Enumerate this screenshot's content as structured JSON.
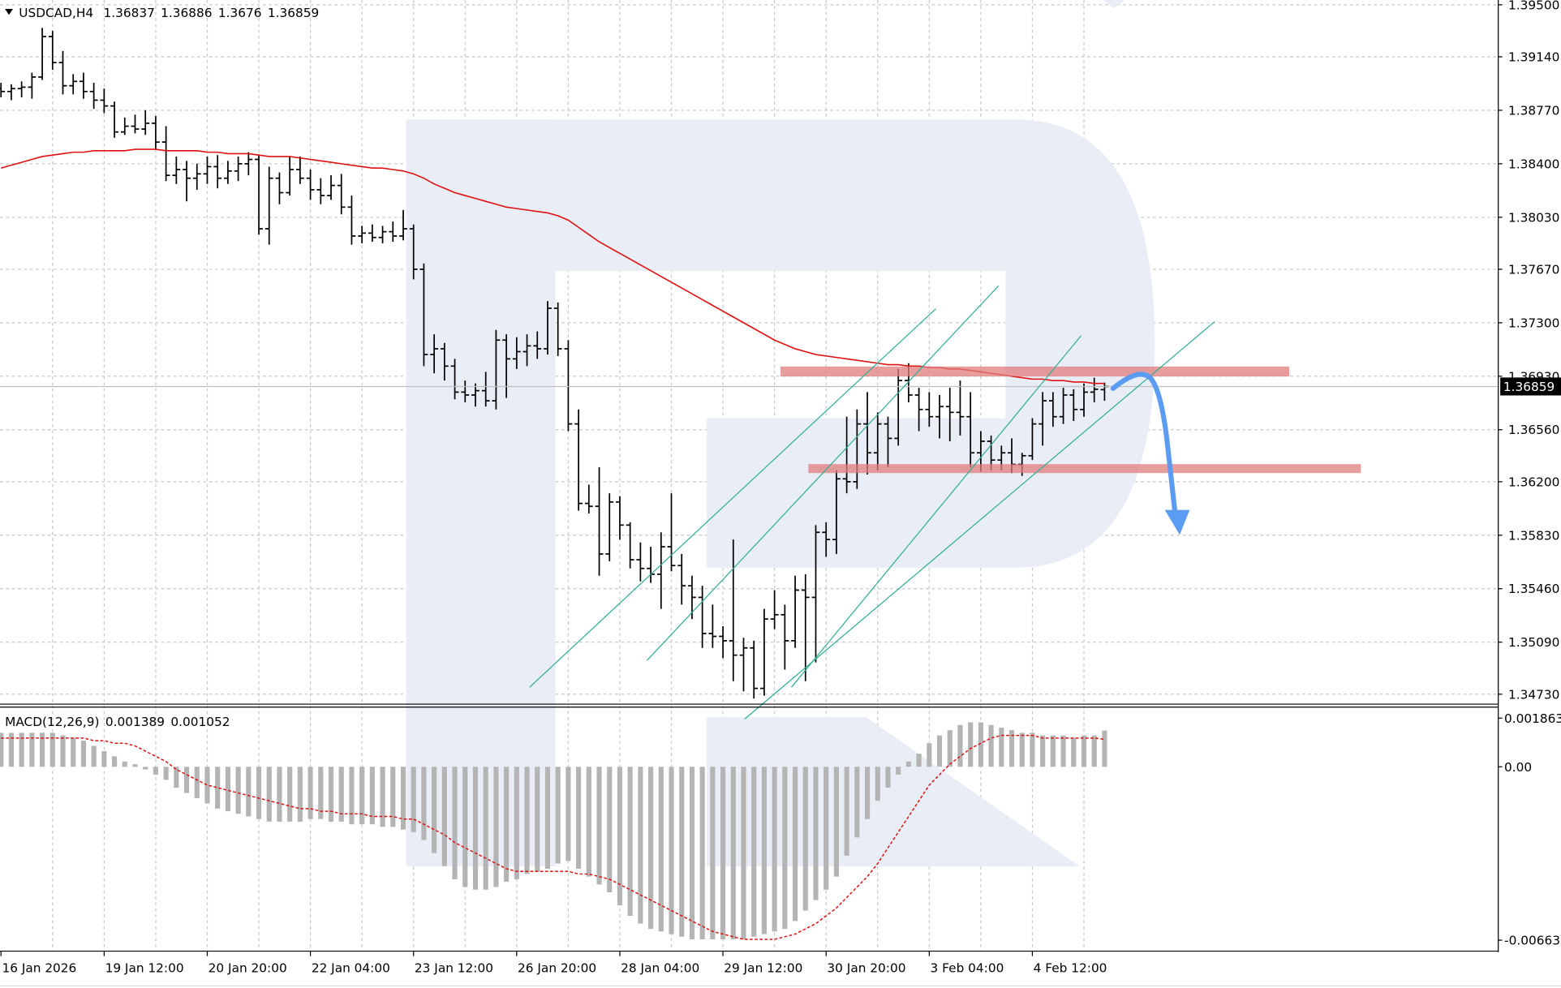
{
  "chart_data": {
    "type": "ohlc",
    "symbol": "USDCAD,H4",
    "categories": [
      "16 Jan 2026",
      null,
      null,
      null,
      null,
      null,
      null,
      null,
      null,
      null,
      "19 Jan 12:00",
      null,
      null,
      null,
      null,
      null,
      null,
      null,
      null,
      null,
      "20 Jan 20:00",
      null,
      null,
      null,
      null,
      null,
      null,
      null,
      null,
      null,
      "22 Jan 04:00",
      null,
      null,
      null,
      null,
      null,
      null,
      null,
      null,
      null,
      "23 Jan 12:00",
      null,
      null,
      null,
      null,
      null,
      null,
      null,
      null,
      null,
      "26 Jan 20:00",
      null,
      null,
      null,
      null,
      null,
      null,
      null,
      null,
      null,
      "28 Jan 04:00",
      null,
      null,
      null,
      null,
      null,
      null,
      null,
      null,
      null,
      "29 Jan 12:00",
      null,
      null,
      null,
      null,
      null,
      null,
      null,
      null,
      null,
      "30 Jan 20:00",
      null,
      null,
      null,
      null,
      null,
      null,
      null,
      null,
      null,
      "3 Feb 04:00",
      null,
      null,
      null,
      null,
      null,
      null,
      null,
      null,
      null,
      "4 Feb 12:00",
      null,
      null,
      null,
      null,
      null,
      null,
      null
    ],
    "ohlc": [
      [
        1.3892,
        1.3896,
        1.3886,
        1.389
      ],
      [
        1.389,
        1.3895,
        1.3884,
        1.3892
      ],
      [
        1.3892,
        1.3897,
        1.3886,
        1.3893
      ],
      [
        1.3893,
        1.3903,
        1.3885,
        1.39
      ],
      [
        1.39,
        1.3934,
        1.3898,
        1.3928
      ],
      [
        1.3928,
        1.3932,
        1.3905,
        1.391
      ],
      [
        1.391,
        1.3918,
        1.3888,
        1.3894
      ],
      [
        1.3894,
        1.3902,
        1.3888,
        1.3897
      ],
      [
        1.3897,
        1.3903,
        1.3885,
        1.389
      ],
      [
        1.389,
        1.3896,
        1.3878,
        1.3884
      ],
      [
        1.3884,
        1.3892,
        1.3875,
        1.388
      ],
      [
        1.388,
        1.3883,
        1.3858,
        1.3862
      ],
      [
        1.3862,
        1.3872,
        1.386,
        1.3866
      ],
      [
        1.3866,
        1.3874,
        1.3861,
        1.3864
      ],
      [
        1.3864,
        1.3877,
        1.386,
        1.3868
      ],
      [
        1.3868,
        1.3873,
        1.385,
        1.3855
      ],
      [
        1.3855,
        1.3866,
        1.3828,
        1.3832
      ],
      [
        1.3832,
        1.3845,
        1.3826,
        1.3836
      ],
      [
        1.3836,
        1.3842,
        1.3814,
        1.383
      ],
      [
        1.383,
        1.384,
        1.3822,
        1.3833
      ],
      [
        1.3833,
        1.3845,
        1.3826,
        1.3838
      ],
      [
        1.3838,
        1.3846,
        1.3823,
        1.383
      ],
      [
        1.383,
        1.3842,
        1.3826,
        1.3835
      ],
      [
        1.3835,
        1.3845,
        1.3828,
        1.384
      ],
      [
        1.384,
        1.3848,
        1.3832,
        1.3843
      ],
      [
        1.3843,
        1.3846,
        1.3791,
        1.3795
      ],
      [
        1.3795,
        1.3838,
        1.3784,
        1.383
      ],
      [
        1.383,
        1.3834,
        1.3812,
        1.382
      ],
      [
        1.382,
        1.3845,
        1.3818,
        1.3836
      ],
      [
        1.3836,
        1.3845,
        1.3826,
        1.383
      ],
      [
        1.383,
        1.3836,
        1.3815,
        1.3822
      ],
      [
        1.3822,
        1.383,
        1.3812,
        1.3818
      ],
      [
        1.3818,
        1.3832,
        1.3815,
        1.3825
      ],
      [
        1.3825,
        1.3833,
        1.3805,
        1.381
      ],
      [
        1.381,
        1.3818,
        1.3784,
        1.379
      ],
      [
        1.379,
        1.3797,
        1.3785,
        1.3792
      ],
      [
        1.3792,
        1.3798,
        1.3786,
        1.3789
      ],
      [
        1.3789,
        1.3797,
        1.3785,
        1.3793
      ],
      [
        1.3793,
        1.38,
        1.3786,
        1.379
      ],
      [
        1.379,
        1.3808,
        1.3787,
        1.3795
      ],
      [
        1.3795,
        1.3798,
        1.376,
        1.3767
      ],
      [
        1.3767,
        1.3771,
        1.37,
        1.3708
      ],
      [
        1.3708,
        1.3722,
        1.3695,
        1.3712
      ],
      [
        1.3712,
        1.3716,
        1.369,
        1.37
      ],
      [
        1.37,
        1.3705,
        1.3677,
        1.3682
      ],
      [
        1.3682,
        1.369,
        1.3675,
        1.368
      ],
      [
        1.368,
        1.3688,
        1.3672,
        1.3683
      ],
      [
        1.3683,
        1.3696,
        1.3672,
        1.3676
      ],
      [
        1.3676,
        1.3725,
        1.367,
        1.3718
      ],
      [
        1.3718,
        1.3722,
        1.3678,
        1.3705
      ],
      [
        1.3705,
        1.372,
        1.3698,
        1.371
      ],
      [
        1.371,
        1.3722,
        1.37,
        1.3714
      ],
      [
        1.3714,
        1.3724,
        1.3705,
        1.3712
      ],
      [
        1.3712,
        1.3745,
        1.3708,
        1.374
      ],
      [
        1.374,
        1.3744,
        1.3707,
        1.3712
      ],
      [
        1.3712,
        1.3718,
        1.3655,
        1.366
      ],
      [
        1.366,
        1.367,
        1.36,
        1.3605
      ],
      [
        1.3605,
        1.3618,
        1.3598,
        1.3603
      ],
      [
        1.3603,
        1.363,
        1.3555,
        1.357
      ],
      [
        1.357,
        1.3612,
        1.3565,
        1.3606
      ],
      [
        1.3606,
        1.361,
        1.358,
        1.359
      ],
      [
        1.359,
        1.3592,
        1.356,
        1.3566
      ],
      [
        1.3566,
        1.3578,
        1.3551,
        1.356
      ],
      [
        1.356,
        1.3575,
        1.355,
        1.3556
      ],
      [
        1.3556,
        1.3585,
        1.3532,
        1.3575
      ],
      [
        1.3575,
        1.3612,
        1.3558,
        1.3562
      ],
      [
        1.3562,
        1.357,
        1.3535,
        1.3548
      ],
      [
        1.3548,
        1.3555,
        1.3525,
        1.354
      ],
      [
        1.354,
        1.3548,
        1.3505,
        1.3515
      ],
      [
        1.3515,
        1.3535,
        1.3505,
        1.3513
      ],
      [
        1.3513,
        1.352,
        1.3498,
        1.351
      ],
      [
        1.351,
        1.358,
        1.3482,
        1.35
      ],
      [
        1.35,
        1.3512,
        1.3475,
        1.3505
      ],
      [
        1.3505,
        1.351,
        1.347,
        1.3477
      ],
      [
        1.3477,
        1.3532,
        1.3472,
        1.3525
      ],
      [
        1.3525,
        1.3545,
        1.3518,
        1.3528
      ],
      [
        1.3528,
        1.3535,
        1.349,
        1.351
      ],
      [
        1.351,
        1.3555,
        1.3505,
        1.3545
      ],
      [
        1.3545,
        1.3556,
        1.3482,
        1.354
      ],
      [
        1.354,
        1.359,
        1.3495,
        1.3585
      ],
      [
        1.3585,
        1.3592,
        1.3568,
        1.358
      ],
      [
        1.358,
        1.3628,
        1.357,
        1.3622
      ],
      [
        1.3622,
        1.3665,
        1.3612,
        1.362
      ],
      [
        1.362,
        1.367,
        1.3615,
        1.366
      ],
      [
        1.366,
        1.3682,
        1.3625,
        1.364
      ],
      [
        1.364,
        1.3668,
        1.3628,
        1.366
      ],
      [
        1.366,
        1.3665,
        1.363,
        1.365
      ],
      [
        1.365,
        1.3698,
        1.3645,
        1.369
      ],
      [
        1.369,
        1.3702,
        1.3675,
        1.368
      ],
      [
        1.368,
        1.3685,
        1.3655,
        1.367
      ],
      [
        1.367,
        1.3682,
        1.3658,
        1.3665
      ],
      [
        1.3665,
        1.368,
        1.365,
        1.3672
      ],
      [
        1.3672,
        1.3685,
        1.3648,
        1.3668
      ],
      [
        1.3668,
        1.369,
        1.3652,
        1.3665
      ],
      [
        1.3665,
        1.3682,
        1.363,
        1.364
      ],
      [
        1.364,
        1.3655,
        1.3627,
        1.3648
      ],
      [
        1.3648,
        1.3652,
        1.3628,
        1.3635
      ],
      [
        1.3635,
        1.3645,
        1.3628,
        1.364
      ],
      [
        1.364,
        1.365,
        1.3626,
        1.3632
      ],
      [
        1.3632,
        1.364,
        1.3624,
        1.3638
      ],
      [
        1.3638,
        1.3664,
        1.3635,
        1.366
      ],
      [
        1.366,
        1.3682,
        1.3645,
        1.3676
      ],
      [
        1.3676,
        1.3682,
        1.3658,
        1.3665
      ],
      [
        1.3665,
        1.3685,
        1.366,
        1.368
      ],
      [
        1.368,
        1.3684,
        1.3662,
        1.367
      ],
      [
        1.367,
        1.3688,
        1.3665,
        1.3682
      ],
      [
        1.3682,
        1.3692,
        1.3675,
        1.3684
      ],
      [
        1.36837,
        1.36886,
        1.3676,
        1.36859
      ]
    ],
    "bar_color": "#000000",
    "ma": {
      "color": "#e01010",
      "values": [
        1.3837,
        1.3839,
        1.3841,
        1.3843,
        1.3845,
        1.3846,
        1.3847,
        1.3848,
        1.3848,
        1.3849,
        1.3849,
        1.3849,
        1.3849,
        1.385,
        1.385,
        1.385,
        1.3849,
        1.3849,
        1.3849,
        1.3849,
        1.3848,
        1.3848,
        1.3847,
        1.3847,
        1.3847,
        1.3846,
        1.3845,
        1.3845,
        1.3845,
        1.3844,
        1.3843,
        1.3842,
        1.3841,
        1.384,
        1.3839,
        1.3838,
        1.3837,
        1.3837,
        1.3836,
        1.3835,
        1.3833,
        1.383,
        1.3826,
        1.3823,
        1.382,
        1.3818,
        1.3816,
        1.3814,
        1.3812,
        1.381,
        1.3809,
        1.3808,
        1.3807,
        1.3806,
        1.3804,
        1.3801,
        1.3796,
        1.3791,
        1.3786,
        1.3782,
        1.3778,
        1.3774,
        1.377,
        1.3766,
        1.3762,
        1.3758,
        1.3754,
        1.375,
        1.3746,
        1.3742,
        1.3738,
        1.3734,
        1.373,
        1.3726,
        1.3722,
        1.3718,
        1.3715,
        1.3712,
        1.371,
        1.3708,
        1.3707,
        1.3706,
        1.3705,
        1.3704,
        1.3703,
        1.3702,
        1.3701,
        1.3701,
        1.37,
        1.37,
        1.3699,
        1.3699,
        1.3698,
        1.3698,
        1.3697,
        1.3696,
        1.3695,
        1.3694,
        1.3693,
        1.3692,
        1.3691,
        1.3691,
        1.369,
        1.369,
        1.3689,
        1.3689,
        1.3688,
        1.3688
      ]
    },
    "ylim": [
      1.34668,
      1.39533
    ],
    "yticks": [
      {
        "value": 1.395,
        "label": "1.39500"
      },
      {
        "value": 1.3914,
        "label": "1.39140"
      },
      {
        "value": 1.3877,
        "label": "1.38770"
      },
      {
        "value": 1.384,
        "label": "1.38400"
      },
      {
        "value": 1.3803,
        "label": "1.38030"
      },
      {
        "value": 1.3767,
        "label": "1.37670"
      },
      {
        "value": 1.373,
        "label": "1.37300"
      },
      {
        "value": 1.3693,
        "label": "1.36930"
      },
      {
        "value": 1.3656,
        "label": "1.36560"
      },
      {
        "value": 1.362,
        "label": "1.36200"
      },
      {
        "value": 1.3583,
        "label": "1.35830"
      },
      {
        "value": 1.3546,
        "label": "1.35460"
      },
      {
        "value": 1.3509,
        "label": "1.35090"
      },
      {
        "value": 1.3473,
        "label": "1.34730"
      }
    ],
    "grid": true,
    "macd": {
      "label": "MACD(12,26,9)",
      "histogram": {
        "color": "#b4b4b4",
        "values": [
          0.0013,
          0.0013,
          0.0013,
          0.0013,
          0.0013,
          0.0013,
          0.0012,
          0.0011,
          0.001,
          0.0008,
          0.0006,
          0.0004,
          0.0002,
          0.0001,
          -0.0001,
          -0.0003,
          -0.0005,
          -0.0008,
          -0.001,
          -0.0012,
          -0.0014,
          -0.0016,
          -0.0017,
          -0.0018,
          -0.0019,
          -0.002,
          -0.0021,
          -0.0021,
          -0.0021,
          -0.0021,
          -0.002,
          -0.002,
          -0.0021,
          -0.0021,
          -0.0022,
          -0.0022,
          -0.0022,
          -0.0023,
          -0.0023,
          -0.0024,
          -0.0025,
          -0.0028,
          -0.0033,
          -0.0038,
          -0.0043,
          -0.0046,
          -0.0047,
          -0.0047,
          -0.0046,
          -0.0044,
          -0.0043,
          -0.0041,
          -0.004,
          -0.0039,
          -0.0037,
          -0.0036,
          -0.0039,
          -0.0042,
          -0.0045,
          -0.0048,
          -0.0053,
          -0.0057,
          -0.006,
          -0.0062,
          -0.0063,
          -0.0064,
          -0.0065,
          -0.0066,
          -0.0066,
          -0.0066,
          -0.0066,
          -0.0066,
          -0.0066,
          -0.0065,
          -0.0064,
          -0.0063,
          -0.0062,
          -0.0059,
          -0.0055,
          -0.0051,
          -0.0047,
          -0.0042,
          -0.0034,
          -0.0027,
          -0.002,
          -0.0013,
          -0.0008,
          -0.0003,
          0.0002,
          0.0005,
          0.0009,
          0.0012,
          0.0014,
          0.0016,
          0.0017,
          0.0017,
          0.0016,
          0.0015,
          0.0014,
          0.0013,
          0.0013,
          0.0012,
          0.0012,
          0.0012,
          0.0011,
          0.0012,
          0.0012,
          0.001389
        ]
      },
      "signal": {
        "color": "#e01010",
        "values": [
          0.0011,
          0.0011,
          0.0011,
          0.0011,
          0.0011,
          0.0011,
          0.0011,
          0.0011,
          0.0011,
          0.001,
          0.001,
          0.0009,
          0.0009,
          0.0008,
          0.0006,
          0.0004,
          0.0002,
          -0.0001,
          -0.0003,
          -0.0005,
          -0.0007,
          -0.0008,
          -0.0009,
          -0.001,
          -0.0011,
          -0.0012,
          -0.0013,
          -0.0014,
          -0.0015,
          -0.0016,
          -0.0016,
          -0.0017,
          -0.0017,
          -0.0018,
          -0.0018,
          -0.0018,
          -0.0019,
          -0.0019,
          -0.0019,
          -0.002,
          -0.002,
          -0.0022,
          -0.0024,
          -0.0026,
          -0.0029,
          -0.0031,
          -0.0033,
          -0.0035,
          -0.0037,
          -0.0039,
          -0.004,
          -0.004,
          -0.004,
          -0.004,
          -0.004,
          -0.004,
          -0.0041,
          -0.0041,
          -0.0042,
          -0.0043,
          -0.0045,
          -0.0047,
          -0.0049,
          -0.0051,
          -0.0053,
          -0.0055,
          -0.0057,
          -0.0059,
          -0.0061,
          -0.0063,
          -0.0064,
          -0.0065,
          -0.0066,
          -0.0066,
          -0.0066,
          -0.0066,
          -0.0065,
          -0.0064,
          -0.0062,
          -0.006,
          -0.0057,
          -0.0054,
          -0.005,
          -0.0046,
          -0.0042,
          -0.0037,
          -0.0031,
          -0.0025,
          -0.0019,
          -0.0013,
          -0.0007,
          -0.0003,
          0.0001,
          0.0004,
          0.0007,
          0.0009,
          0.0011,
          0.0012,
          0.0012,
          0.0012,
          0.0012,
          0.0011,
          0.0011,
          0.0011,
          0.0011,
          0.0011,
          0.0011,
          0.001052
        ]
      },
      "y2lim": [
        -0.007052,
        0.002206
      ],
      "y2ticks": [
        0.001863,
        {
          "value": 0,
          "label": "0.00"
        },
        -0.006633
      ]
    }
  }
}
